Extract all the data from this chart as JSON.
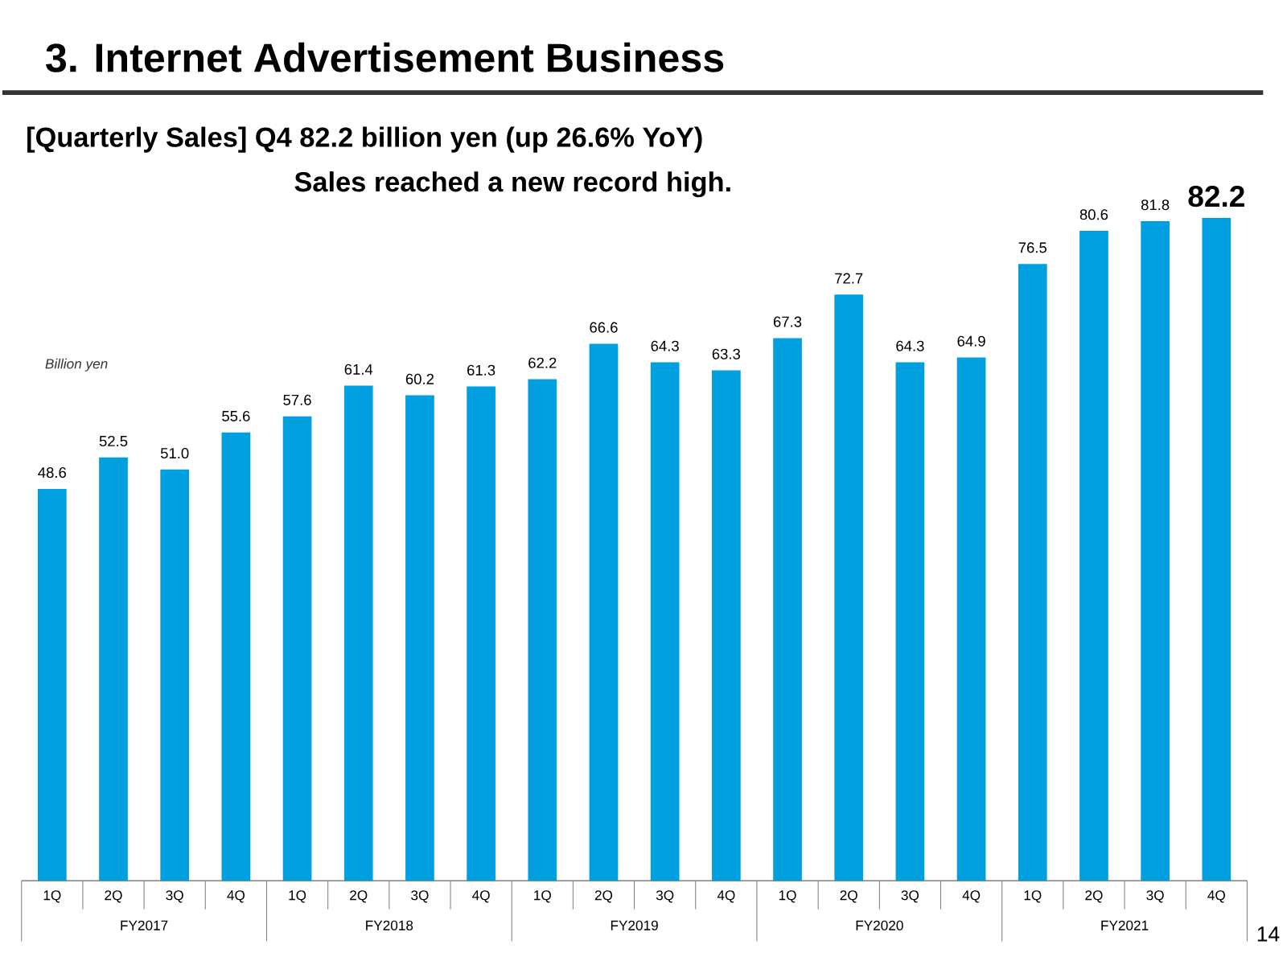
{
  "chart_data": {
    "type": "bar",
    "title": "3. Internet Advertisement Business",
    "subtitle": "[Quarterly Sales] Q4 **82.2** billion yen (up **26.6**% YoY)",
    "ylabel": "Billion yen",
    "categories": [
      "1Q",
      "2Q",
      "3Q",
      "4Q",
      "1Q",
      "2Q",
      "3Q",
      "4Q",
      "1Q",
      "2Q",
      "3Q",
      "4Q",
      "1Q",
      "2Q",
      "3Q",
      "4Q",
      "1Q",
      "2Q",
      "3Q",
      "4Q"
    ],
    "values": [
      48.6,
      52.5,
      51.0,
      55.6,
      57.6,
      61.4,
      60.2,
      61.3,
      62.2,
      66.6,
      64.3,
      63.3,
      67.3,
      72.7,
      64.3,
      64.9,
      76.5,
      80.6,
      81.8,
      82.2
    ],
    "value_labels": [
      "48.6",
      "52.5",
      "51.0",
      "55.6",
      "57.6",
      "61.4",
      "60.2",
      "61.3",
      "62.2",
      "66.6",
      "64.3",
      "63.3",
      "67.3",
      "72.7",
      "64.3",
      "64.9",
      "76.5",
      "80.6",
      "81.8",
      "82.2"
    ],
    "color": "#00a0e0",
    "annotations": [
      "FY2017",
      "FY2018",
      "FY2019",
      "FY2020",
      "FY2021",
      "Sales reached a new record high.",
      "14"
    ]
  }
}
